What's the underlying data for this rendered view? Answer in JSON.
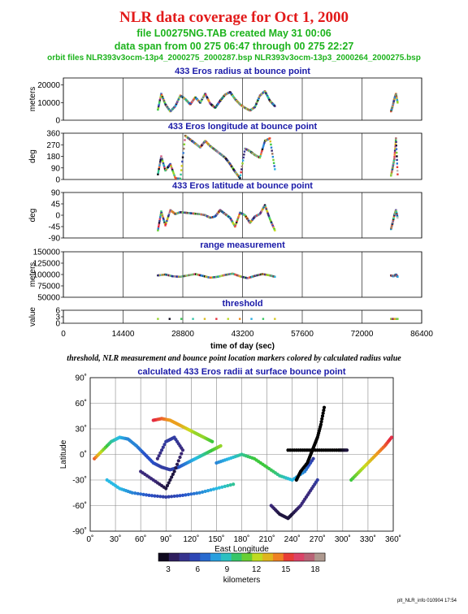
{
  "header": {
    "title": "NLR data coverage for Oct 1, 2000",
    "file_line": "file L00275NG.TAB created May 31 00:06",
    "span_line": "data span from 00 275 06:47 through 00 275 22:27",
    "orbit_line": "orbit files NLR393v3ocm-13p4_2000275_2000287.bsp NLR393v3ocm-13p3_2000264_2000275.bsp"
  },
  "colors": {
    "title": "#e21a1a",
    "header_text": "#1db31d",
    "panel_title": "#1a1aa8"
  },
  "time_panels": {
    "x_ticks": [
      "0",
      "14400",
      "28800",
      "43200",
      "57600",
      "72000",
      "86400"
    ],
    "x_label": "time of day (sec)",
    "x_range": [
      0,
      86400
    ],
    "panels": [
      {
        "title": "433 Eros radius at bounce point",
        "ylabel": "meters",
        "ticks": [
          "0",
          "10000",
          "20000"
        ],
        "tick_values": [
          0,
          10000,
          20000
        ],
        "ylim": [
          0,
          24000
        ]
      },
      {
        "title": "433 Eros longitude at bounce point",
        "ylabel": "deg",
        "ticks": [
          "0",
          "90",
          "180",
          "270",
          "360"
        ],
        "tick_values": [
          0,
          90,
          180,
          270,
          360
        ],
        "ylim": [
          0,
          360
        ]
      },
      {
        "title": "433 Eros latitude at bounce point",
        "ylabel": "deg",
        "ticks": [
          "-90",
          "-45",
          "0",
          "45",
          "90"
        ],
        "tick_values": [
          -90,
          -45,
          0,
          45,
          90
        ],
        "ylim": [
          -90,
          90
        ]
      },
      {
        "title": "range measurement",
        "ylabel": "meters",
        "ticks": [
          "50000",
          "75000",
          "100000",
          "125000",
          "150000"
        ],
        "tick_values": [
          50000,
          75000,
          100000,
          125000,
          150000
        ],
        "ylim": [
          50000,
          150000
        ]
      },
      {
        "title": "threshold",
        "ylabel": "value",
        "ticks": [
          "0",
          "3",
          "6"
        ],
        "tick_values": [
          0,
          3,
          6
        ],
        "ylim": [
          0,
          6
        ]
      }
    ]
  },
  "caption": "threshold, NLR measurement and bounce point location markers colored by calculated radius value",
  "map": {
    "title": "calculated 433 Eros radii at surface bounce point",
    "x_label": "East Longitude",
    "y_label": "Latitude",
    "x_ticks": [
      "0˚",
      "30˚",
      "60˚",
      "90˚",
      "120˚",
      "150˚",
      "180˚",
      "210˚",
      "240˚",
      "270˚",
      "300˚",
      "330˚",
      "360˚"
    ],
    "y_ticks": [
      "90˚",
      "60˚",
      "30˚",
      "0˚",
      "-30˚",
      "-60˚",
      "-90˚"
    ],
    "colorbar_ticks": [
      "3",
      "6",
      "9",
      "12",
      "15",
      "18"
    ],
    "colorbar_label": "kilometers"
  },
  "footer": "plt_NLR_info 010904 17:54",
  "chart_data": [
    {
      "type": "scatter",
      "title": "433 Eros radius at bounce point",
      "xlabel": "time of day (sec)",
      "ylabel": "meters",
      "xlim": [
        0,
        86400
      ],
      "ylim": [
        0,
        24000
      ],
      "segments": [
        {
          "x": [
            22800,
            23600,
            24600,
            25800,
            27000,
            28200,
            29400,
            30600,
            31800,
            33000,
            34200,
            35400,
            36600,
            37800,
            39000,
            40200,
            41400,
            42600,
            43800,
            45000,
            46200,
            47400,
            48600,
            49800,
            51000
          ],
          "y": [
            6000,
            15000,
            9000,
            5000,
            8000,
            14000,
            12000,
            9000,
            13000,
            10000,
            15000,
            9500,
            7000,
            11000,
            14500,
            16000,
            12000,
            9000,
            7000,
            5500,
            7500,
            14000,
            16500,
            11000,
            8000
          ]
        },
        {
          "x": [
            79000,
            79400,
            79800,
            80200,
            80600
          ],
          "y": [
            5000,
            8000,
            12000,
            15000,
            10000
          ]
        }
      ]
    },
    {
      "type": "scatter",
      "title": "433 Eros longitude at bounce point",
      "xlabel": "time of day (sec)",
      "ylabel": "deg",
      "xlim": [
        0,
        86400
      ],
      "ylim": [
        0,
        360
      ],
      "segments": [
        {
          "x": [
            22800,
            23600,
            24600,
            25800,
            27000,
            28200,
            29400,
            30600,
            31800,
            33000,
            34200,
            35400,
            36600,
            37800,
            39000,
            40200,
            41400,
            42600,
            43800,
            45000,
            46200,
            47400,
            48600,
            49800,
            51000
          ],
          "y": [
            40,
            180,
            70,
            120,
            10,
            5,
            340,
            310,
            280,
            250,
            300,
            260,
            230,
            200,
            170,
            120,
            60,
            10,
            240,
            220,
            190,
            170,
            300,
            320,
            80
          ]
        },
        {
          "x": [
            79000,
            79400,
            79800,
            80200,
            80600
          ],
          "y": [
            30,
            90,
            160,
            320,
            40
          ]
        }
      ]
    },
    {
      "type": "scatter",
      "title": "433 Eros latitude at bounce point",
      "xlabel": "time of day (sec)",
      "ylabel": "deg",
      "xlim": [
        0,
        86400
      ],
      "ylim": [
        -90,
        90
      ],
      "segments": [
        {
          "x": [
            22800,
            23600,
            24600,
            25800,
            27000,
            28200,
            29400,
            30600,
            31800,
            33000,
            34200,
            35400,
            36600,
            37800,
            39000,
            40200,
            41400,
            42600,
            43800,
            45000,
            46200,
            47400,
            48600,
            49800,
            51000
          ],
          "y": [
            -60,
            15,
            -40,
            20,
            5,
            12,
            10,
            8,
            6,
            4,
            0,
            -10,
            -5,
            20,
            5,
            -10,
            -45,
            10,
            0,
            -30,
            -5,
            5,
            40,
            -15,
            -60
          ]
        },
        {
          "x": [
            79000,
            79400,
            79800,
            80200,
            80600
          ],
          "y": [
            -55,
            -30,
            0,
            20,
            -10
          ]
        }
      ]
    },
    {
      "type": "scatter",
      "title": "range measurement",
      "xlabel": "time of day (sec)",
      "ylabel": "meters",
      "xlim": [
        0,
        86400
      ],
      "ylim": [
        50000,
        150000
      ],
      "segments": [
        {
          "x": [
            22800,
            24600,
            26400,
            28200,
            30000,
            31800,
            33600,
            35400,
            37200,
            39000,
            40800,
            42600,
            44400,
            46200,
            48000,
            49800,
            51000
          ],
          "y": [
            98000,
            100000,
            96000,
            95000,
            98000,
            101000,
            97000,
            93000,
            95000,
            99000,
            102000,
            96000,
            92000,
            97000,
            101000,
            98000,
            95000
          ]
        },
        {
          "x": [
            79000,
            79600,
            80200,
            80600
          ],
          "y": [
            98000,
            96000,
            100000,
            95000
          ]
        }
      ]
    },
    {
      "type": "scatter",
      "title": "threshold",
      "xlabel": "time of day (sec)",
      "ylabel": "value",
      "xlim": [
        0,
        86400
      ],
      "ylim": [
        0,
        6
      ],
      "segments": [
        {
          "x": [
            22800,
            51000
          ],
          "y": [
            2,
            2
          ]
        },
        {
          "x": [
            79000,
            80600
          ],
          "y": [
            2,
            2
          ]
        }
      ]
    },
    {
      "type": "scatter",
      "title": "calculated 433 Eros radii at surface bounce point",
      "xlabel": "East Longitude",
      "ylabel": "Latitude",
      "xlim": [
        0,
        360
      ],
      "ylim": [
        -90,
        90
      ],
      "color_scale": "radius (km) 3-18",
      "tracks": [
        {
          "lon": [
            5,
            15,
            25,
            35,
            45,
            55,
            65,
            75,
            85,
            95,
            105,
            115,
            125,
            135,
            145,
            155
          ],
          "lat": [
            -5,
            5,
            15,
            20,
            18,
            10,
            0,
            -10,
            -15,
            -18,
            -15,
            -10,
            -5,
            0,
            5,
            10
          ],
          "radius_km": [
            15,
            12,
            10,
            9,
            8,
            8,
            7,
            7,
            6,
            6,
            7,
            8,
            9,
            10,
            11,
            12
          ]
        },
        {
          "lon": [
            20,
            35,
            50,
            70,
            90,
            110,
            130,
            150,
            170
          ],
          "lat": [
            -30,
            -40,
            -45,
            -48,
            -50,
            -48,
            -45,
            -40,
            -35
          ],
          "radius_km": [
            9,
            9,
            8,
            7,
            6,
            7,
            8,
            9,
            10
          ]
        },
        {
          "lon": [
            60,
            75,
            90,
            100,
            110,
            100,
            90,
            80
          ],
          "lat": [
            -20,
            -30,
            -40,
            -20,
            5,
            20,
            15,
            -5
          ],
          "radius_km": [
            5,
            5,
            4,
            4,
            5,
            6,
            6,
            5
          ]
        },
        {
          "lon": [
            150,
            165,
            180,
            195,
            210,
            225,
            240,
            255,
            265
          ],
          "lat": [
            -10,
            -5,
            0,
            -5,
            -15,
            -25,
            -30,
            -20,
            -5
          ],
          "radius_km": [
            8,
            9,
            10,
            11,
            11,
            10,
            9,
            8,
            6
          ]
        },
        {
          "lon": [
            215,
            225,
            235,
            240,
            250,
            260,
            270
          ],
          "lat": [
            -60,
            -70,
            -75,
            -70,
            -60,
            -45,
            -30
          ],
          "radius_km": [
            5,
            4,
            4,
            4,
            5,
            5,
            6
          ]
        },
        {
          "lon": [
            245,
            250,
            258,
            262,
            266,
            270,
            274,
            278
          ],
          "lat": [
            -30,
            -20,
            -10,
            0,
            10,
            20,
            35,
            55
          ],
          "radius_km": [
            3,
            3,
            3,
            3,
            3,
            3,
            3,
            3
          ]
        },
        {
          "lon": [
            235,
            250,
            265,
            280,
            295,
            305
          ],
          "lat": [
            5,
            5,
            5,
            5,
            5,
            5
          ],
          "radius_km": [
            3,
            3,
            3,
            3,
            3,
            4
          ]
        },
        {
          "lon": [
            310,
            320,
            330,
            340,
            350,
            358
          ],
          "lat": [
            -30,
            -20,
            -10,
            0,
            10,
            20
          ],
          "radius_km": [
            11,
            12,
            13,
            14,
            15,
            16
          ]
        },
        {
          "lon": [
            75,
            85,
            95,
            105,
            115,
            125,
            135,
            145
          ],
          "lat": [
            40,
            42,
            40,
            35,
            30,
            25,
            20,
            15
          ],
          "radius_km": [
            16,
            15,
            14,
            14,
            13,
            12,
            12,
            11
          ]
        }
      ]
    }
  ]
}
